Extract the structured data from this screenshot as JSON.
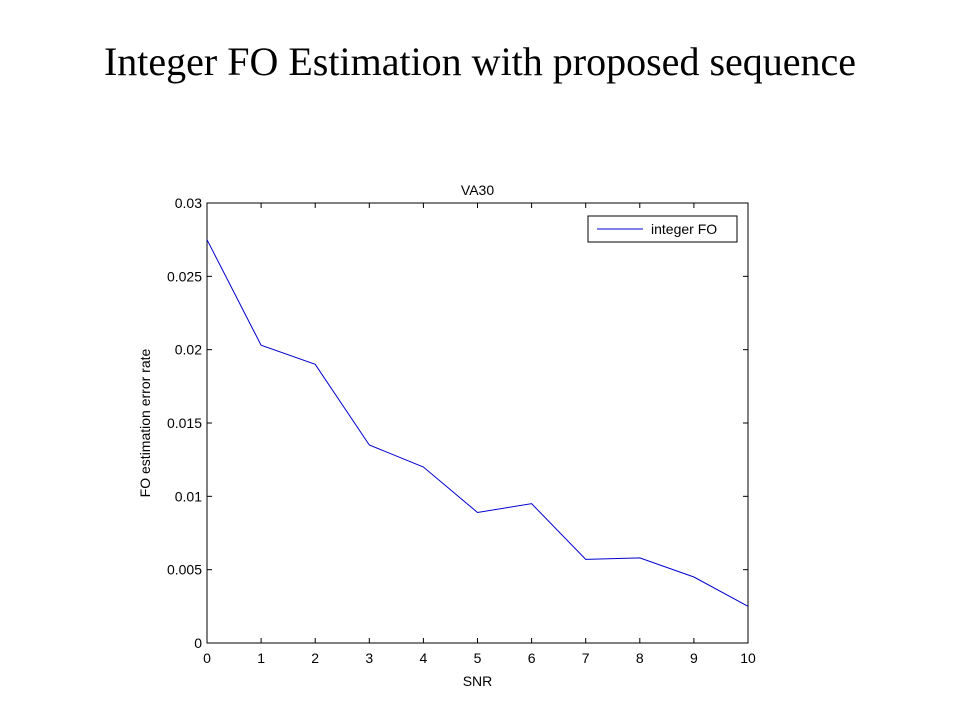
{
  "slide": {
    "title": "Integer FO Estimation with proposed sequence"
  },
  "chart_data": {
    "type": "line",
    "title": "VA30",
    "xlabel": "SNR",
    "ylabel": "FO estimation error rate",
    "xlim": [
      0,
      10
    ],
    "ylim": [
      0,
      0.03
    ],
    "xticks": [
      0,
      1,
      2,
      3,
      4,
      5,
      6,
      7,
      8,
      9,
      10
    ],
    "xtick_labels": [
      "0",
      "1",
      "2",
      "3",
      "4",
      "5",
      "6",
      "7",
      "8",
      "9",
      "10"
    ],
    "yticks": [
      0,
      0.005,
      0.01,
      0.015,
      0.02,
      0.025,
      0.03
    ],
    "ytick_labels": [
      "0",
      "0.005",
      "0.01",
      "0.015",
      "0.02",
      "0.025",
      "0.03"
    ],
    "grid": false,
    "legend_position": "top-right",
    "series": [
      {
        "name": "integer FO",
        "color": "#0000cc",
        "x": [
          0,
          1,
          2,
          3,
          4,
          5,
          6,
          7,
          8,
          9,
          10
        ],
        "y": [
          0.0275,
          0.0203,
          0.019,
          0.0135,
          0.012,
          0.0089,
          0.0095,
          0.0057,
          0.0058,
          0.0045,
          0.0025
        ]
      }
    ]
  }
}
